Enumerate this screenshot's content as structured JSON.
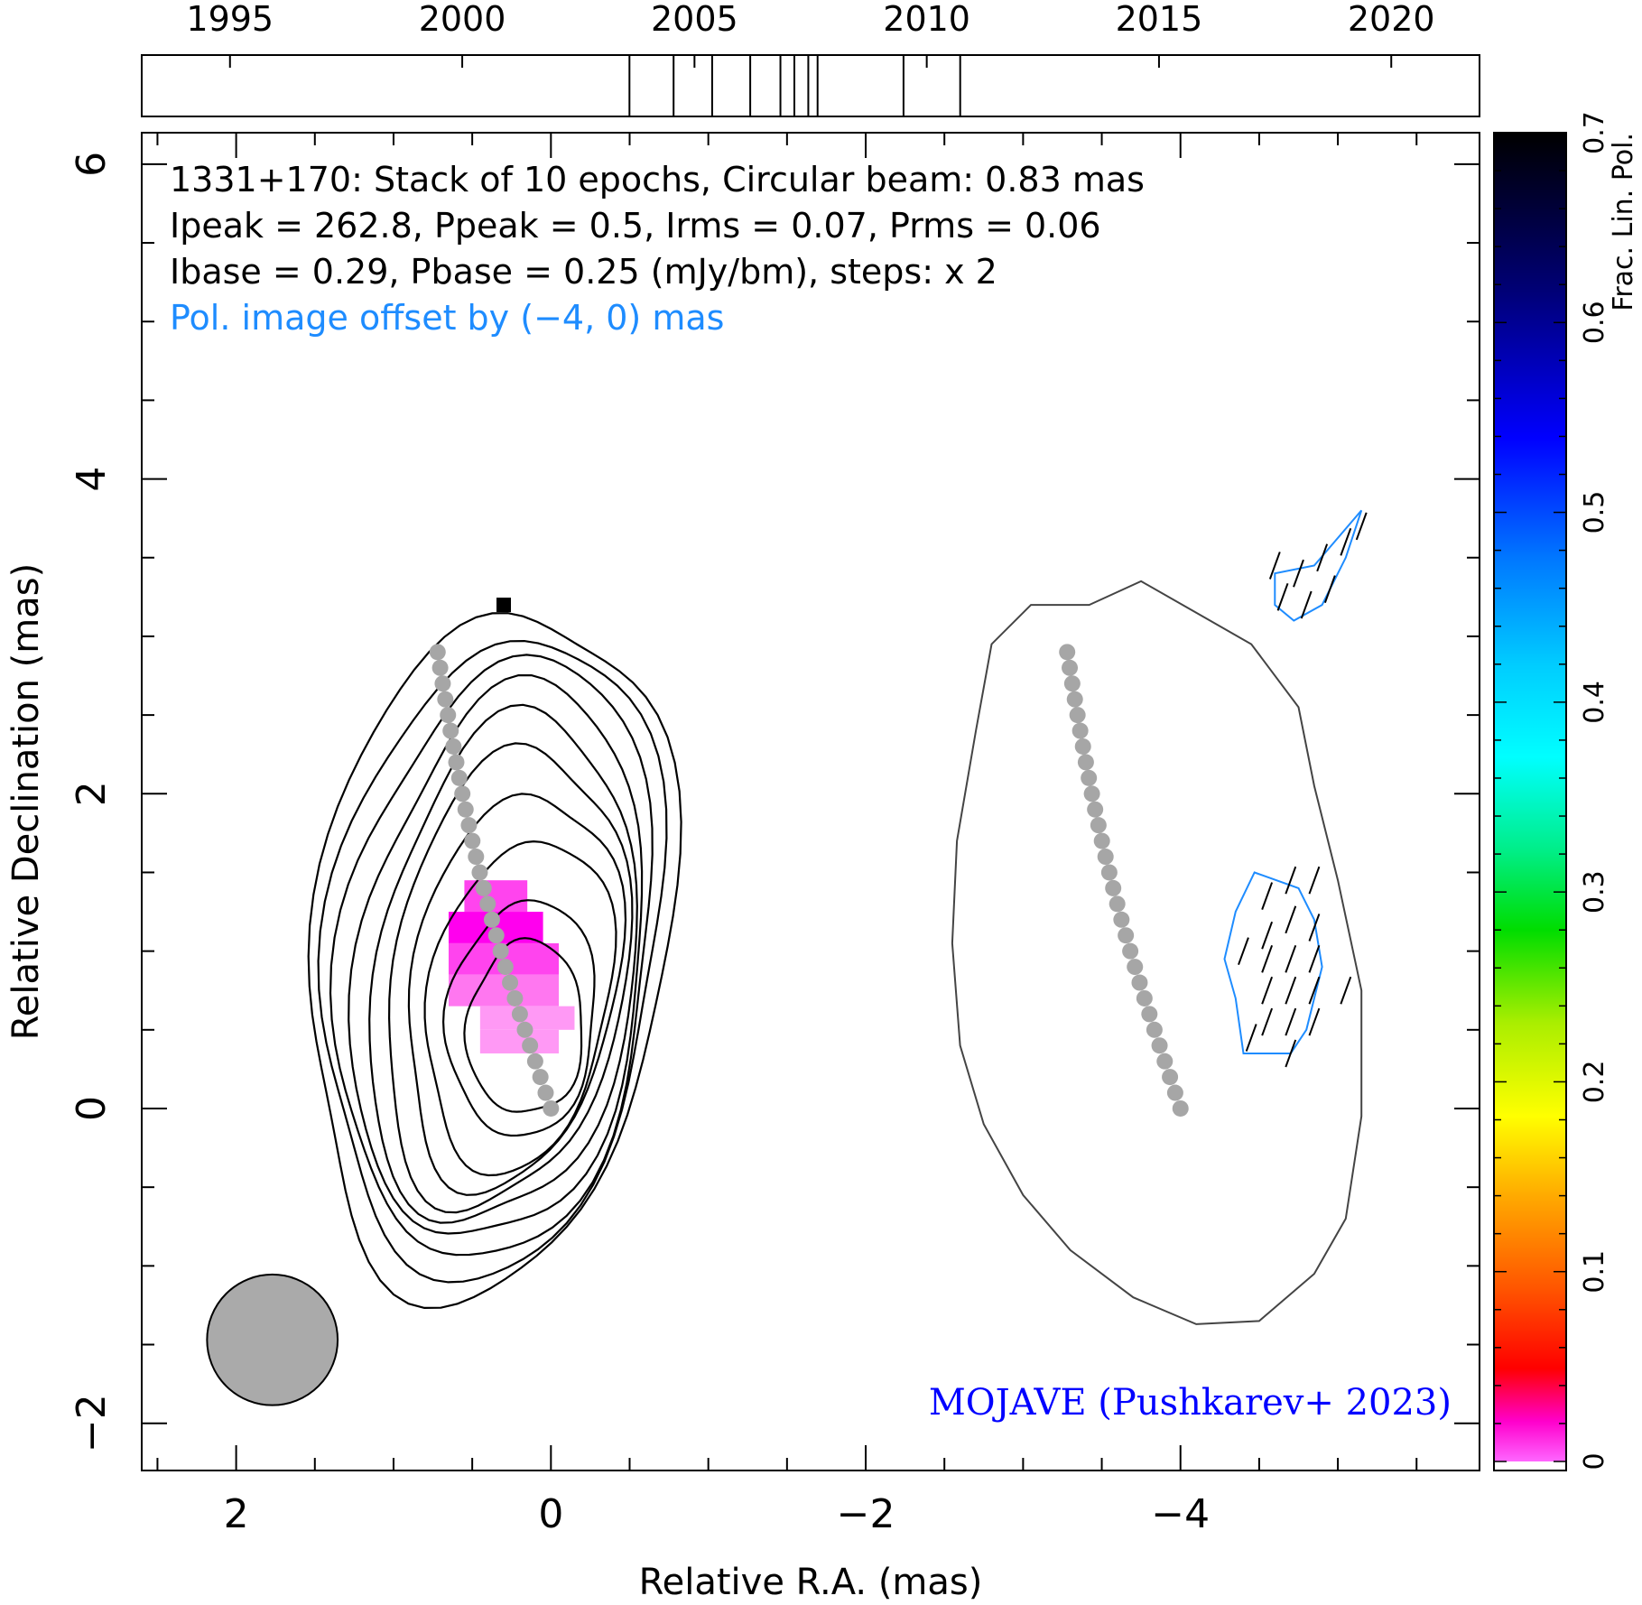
{
  "chart_data": {
    "type": "contour",
    "annotation": {
      "line1": "1331+170: Stack of 10 epochs, Circular beam: 0.83 mas",
      "line2": "Ipeak = 262.8, Ppeak = 0.5, Irms = 0.07, Prms = 0.06",
      "line3": "Ibase = 0.29, Pbase = 0.25 (mJy/bm), steps: x 2",
      "line4": "Pol. image offset by (−4, 0) mas",
      "credit": "MOJAVE (Pushkarev+ 2023)"
    },
    "xlabel": "Relative R.A. (mas)",
    "ylabel": "Relative Declination (mas)",
    "colorbar_label": "Frac. Lin. Pol.",
    "xlim": [
      2.6,
      -5.9
    ],
    "ylim": [
      -2.3,
      6.2
    ],
    "x_ticks": [
      {
        "v": 2,
        "label": "2"
      },
      {
        "v": 0,
        "label": "0"
      },
      {
        "v": -2,
        "label": "−2"
      },
      {
        "v": -4,
        "label": "−4"
      }
    ],
    "y_ticks": [
      {
        "v": -2,
        "label": "−2"
      },
      {
        "v": 0,
        "label": "0"
      },
      {
        "v": 2,
        "label": "2"
      },
      {
        "v": 4,
        "label": "4"
      },
      {
        "v": 6,
        "label": "6"
      }
    ],
    "timeline": {
      "range": [
        1993.1,
        2021.9
      ],
      "ticks": [
        {
          "v": 1995,
          "label": "1995"
        },
        {
          "v": 2000,
          "label": "2000"
        },
        {
          "v": 2005,
          "label": "2005"
        },
        {
          "v": 2010,
          "label": "2010"
        },
        {
          "v": 2015,
          "label": "2015"
        },
        {
          "v": 2020,
          "label": "2020"
        }
      ],
      "epochs": [
        2003.6,
        2004.55,
        2005.38,
        2006.2,
        2006.85,
        2007.15,
        2007.45,
        2007.65,
        2009.5,
        2010.72
      ]
    },
    "colorbar": {
      "range": [
        0,
        0.7
      ],
      "ticks": [
        {
          "v": 0,
          "label": "0"
        },
        {
          "v": 0.1,
          "label": "0.1"
        },
        {
          "v": 0.2,
          "label": "0.2"
        },
        {
          "v": 0.3,
          "label": "0.3"
        },
        {
          "v": 0.4,
          "label": "0.4"
        },
        {
          "v": 0.5,
          "label": "0.5"
        },
        {
          "v": 0.6,
          "label": "0.6"
        },
        {
          "v": 0.7,
          "label": "0.7"
        }
      ]
    },
    "beam": {
      "x": 1.77,
      "y": -1.47,
      "diameter_mas": 0.83
    },
    "jet_ridge": {
      "start": [
        0.72,
        2.9
      ],
      "end": [
        0.0,
        0.0
      ],
      "points": 30
    },
    "core_marker": [
      0.3,
      3.2
    ],
    "stokes_I_contours": [
      {
        "level": 1,
        "cx": 0.38,
        "cy": 1.0,
        "a": 1.13,
        "b": 2.2,
        "rot": 0.14
      },
      {
        "level": 2,
        "cx": 0.36,
        "cy": 0.97,
        "a": 1.05,
        "b": 2.05,
        "rot": 0.14
      },
      {
        "level": 3,
        "cx": 0.34,
        "cy": 0.94,
        "a": 0.98,
        "b": 1.92,
        "rot": 0.14
      },
      {
        "level": 4,
        "cx": 0.32,
        "cy": 0.9,
        "a": 0.9,
        "b": 1.78,
        "rot": 0.15
      },
      {
        "level": 5,
        "cx": 0.3,
        "cy": 0.86,
        "a": 0.82,
        "b": 1.63,
        "rot": 0.16
      },
      {
        "level": 6,
        "cx": 0.28,
        "cy": 0.82,
        "a": 0.74,
        "b": 1.47,
        "rot": 0.17
      },
      {
        "level": 7,
        "cx": 0.24,
        "cy": 0.75,
        "a": 0.65,
        "b": 1.27,
        "rot": 0.18
      },
      {
        "level": 8,
        "cx": 0.2,
        "cy": 0.66,
        "a": 0.57,
        "b": 1.07,
        "rot": 0.18
      },
      {
        "level": 9,
        "cx": 0.18,
        "cy": 0.57,
        "a": 0.47,
        "b": 0.75,
        "rot": 0.1
      },
      {
        "level": 10,
        "cx": 0.16,
        "cy": 0.51,
        "a": 0.37,
        "b": 0.55,
        "rot": 0.05
      }
    ],
    "frac_pol_pixels": [
      {
        "x0": 0.55,
        "x1": 0.15,
        "y0": 1.45,
        "y1": 1.25,
        "v": 0.02
      },
      {
        "x0": 0.65,
        "x1": 0.05,
        "y0": 1.25,
        "y1": 1.05,
        "v": 0.025
      },
      {
        "x0": 0.65,
        "x1": -0.05,
        "y0": 1.05,
        "y1": 0.85,
        "v": 0.015
      },
      {
        "x0": 0.65,
        "x1": -0.05,
        "y0": 0.85,
        "y1": 0.65,
        "v": 0.01
      },
      {
        "x0": 0.45,
        "x1": -0.15,
        "y0": 0.65,
        "y1": 0.5,
        "v": 0.005
      },
      {
        "x0": 0.45,
        "x1": -0.05,
        "y0": 0.5,
        "y1": 0.35,
        "v": 0.003
      }
    ],
    "pol_I_contour": {
      "shift": [
        -4,
        0
      ],
      "outline": [
        [
          0.58,
          3.2
        ],
        [
          0.25,
          3.35
        ],
        [
          -0.1,
          3.15
        ],
        [
          -0.45,
          2.95
        ],
        [
          -0.75,
          2.55
        ],
        [
          -0.85,
          2.05
        ],
        [
          -1.0,
          1.45
        ],
        [
          -1.15,
          0.75
        ],
        [
          -1.15,
          -0.05
        ],
        [
          -1.05,
          -0.7
        ],
        [
          -0.85,
          -1.05
        ],
        [
          -0.5,
          -1.35
        ],
        [
          -0.1,
          -1.37
        ],
        [
          0.3,
          -1.2
        ],
        [
          0.7,
          -0.9
        ],
        [
          1.0,
          -0.55
        ],
        [
          1.25,
          -0.1
        ],
        [
          1.4,
          0.4
        ],
        [
          1.45,
          1.05
        ],
        [
          1.42,
          1.7
        ],
        [
          1.3,
          2.4
        ],
        [
          1.2,
          2.95
        ],
        [
          0.95,
          3.2
        ]
      ]
    },
    "pol_contours": [
      {
        "points": [
          [
            -0.47,
            1.5
          ],
          [
            -0.75,
            1.4
          ],
          [
            -0.85,
            1.2
          ],
          [
            -0.9,
            0.9
          ],
          [
            -0.8,
            0.5
          ],
          [
            -0.7,
            0.35
          ],
          [
            -0.4,
            0.35
          ],
          [
            -0.35,
            0.7
          ],
          [
            -0.28,
            0.95
          ],
          [
            -0.35,
            1.25
          ]
        ]
      },
      {
        "points": [
          [
            -0.85,
            3.45
          ],
          [
            -1.15,
            3.8
          ],
          [
            -1.05,
            3.5
          ],
          [
            -0.9,
            3.2
          ],
          [
            -0.72,
            3.1
          ],
          [
            -0.6,
            3.2
          ],
          [
            -0.6,
            3.4
          ]
        ]
      }
    ],
    "evpa_ticks": [
      {
        "x": -0.7,
        "y": 1.45
      },
      {
        "x": -0.85,
        "y": 1.45
      },
      {
        "x": -0.55,
        "y": 1.35
      },
      {
        "x": -0.7,
        "y": 1.2
      },
      {
        "x": -0.85,
        "y": 1.15
      },
      {
        "x": -0.55,
        "y": 1.1
      },
      {
        "x": -0.7,
        "y": 0.95
      },
      {
        "x": -0.85,
        "y": 0.95
      },
      {
        "x": -0.55,
        "y": 0.95
      },
      {
        "x": -0.7,
        "y": 0.75
      },
      {
        "x": -0.85,
        "y": 0.75
      },
      {
        "x": -0.55,
        "y": 0.75
      },
      {
        "x": -0.7,
        "y": 0.55
      },
      {
        "x": -0.85,
        "y": 0.55
      },
      {
        "x": -0.55,
        "y": 0.55
      },
      {
        "x": -0.7,
        "y": 0.35
      },
      {
        "x": -0.4,
        "y": 1.0
      },
      {
        "x": -1.05,
        "y": 0.75
      },
      {
        "x": -0.45,
        "y": 0.45
      },
      {
        "x": -0.75,
        "y": 3.4
      },
      {
        "x": -0.9,
        "y": 3.5
      },
      {
        "x": -1.05,
        "y": 3.6
      },
      {
        "x": -0.65,
        "y": 3.25
      },
      {
        "x": -0.8,
        "y": 3.2
      },
      {
        "x": -0.95,
        "y": 3.3
      },
      {
        "x": -1.15,
        "y": 3.7
      },
      {
        "x": -0.6,
        "y": 3.45
      }
    ]
  }
}
